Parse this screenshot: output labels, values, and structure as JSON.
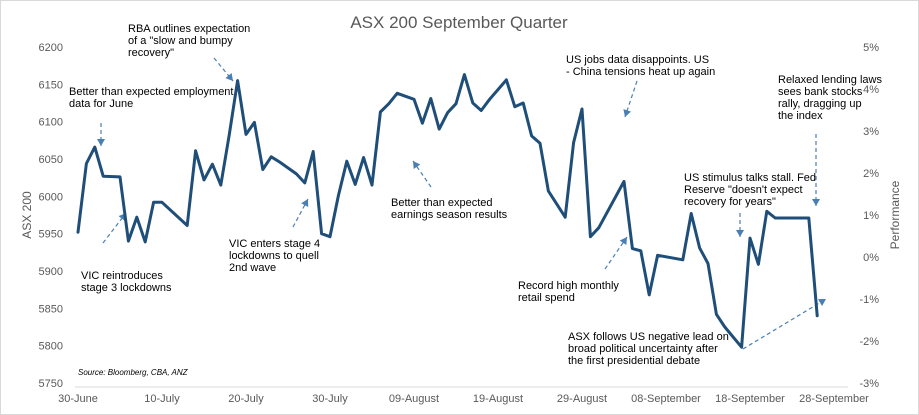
{
  "chart_data": {
    "type": "line",
    "title": "ASX 200 September Quarter",
    "ylabel": "ASX 200",
    "y2label": "Performance",
    "ylim": [
      5750,
      6200
    ],
    "yticks": [
      "5750",
      "5800",
      "5850",
      "5900",
      "5950",
      "6000",
      "6050",
      "6100",
      "6150",
      "6200"
    ],
    "y2ticks": [
      "5%",
      "4%",
      "3%",
      "2%",
      "1%",
      "0%",
      "-1%",
      "-2%",
      "-3%"
    ],
    "xticks": [
      "30-June",
      "10-July",
      "20-July",
      "30-July",
      "09-August",
      "19-August",
      "29-August",
      "08-September",
      "18-September",
      "28-September"
    ],
    "grid": false,
    "series": [
      {
        "x": [
          0,
          1,
          2,
          3,
          5,
          6,
          7,
          8,
          9,
          10,
          13,
          14,
          15,
          16,
          17,
          18,
          19,
          20,
          21,
          22,
          23,
          24,
          26,
          27,
          28,
          29,
          30,
          31,
          32,
          33,
          34,
          35,
          36,
          37,
          38,
          40,
          41,
          42,
          43,
          44,
          45,
          46,
          47,
          48,
          49,
          51,
          52,
          53,
          54,
          55,
          56,
          58,
          59,
          60,
          61,
          62,
          65,
          66,
          67,
          68,
          69,
          72,
          73,
          74,
          75,
          76,
          77,
          79,
          80,
          81,
          82,
          83,
          84,
          85,
          86,
          87,
          88
        ],
        "values": [
          5952,
          6044,
          6066,
          6027,
          6026,
          5940,
          5972,
          5939,
          5992,
          5992,
          5961,
          6061,
          6022,
          6043,
          6015,
          6082,
          6155,
          6083,
          6099,
          6036,
          6053,
          6046,
          6030,
          6018,
          6060,
          5950,
          5946,
          6001,
          6047,
          6016,
          6052,
          6015,
          6113,
          6124,
          6138,
          6130,
          6098,
          6131,
          6090,
          6112,
          6124,
          6163,
          6125,
          6115,
          6130,
          6156,
          6120,
          6125,
          6081,
          6071,
          6007,
          5972,
          6072,
          6117,
          5946,
          5958,
          6020,
          5930,
          5927,
          5868,
          5921,
          5915,
          5977,
          5931,
          5910,
          5842,
          5825,
          5798,
          5944,
          5909,
          5980,
          5971,
          5971,
          5971,
          5971,
          5971,
          5840
        ]
      }
    ],
    "annotations": [
      {
        "text": "Better than expected employment data for June"
      },
      {
        "text": "RBA outlines expectation of a \"slow and bumpy recovery\""
      },
      {
        "text": "VIC reintroduces stage 3 lockdowns"
      },
      {
        "text": "VIC enters stage 4 lockdowns to quell 2nd wave"
      },
      {
        "text": "Better than expected earnings season results"
      },
      {
        "text": "US jobs data disappoints. US - China tensions heat up again"
      },
      {
        "text": "Record high monthly retail spend"
      },
      {
        "text": "Relaxed lending laws sees bank stocks rally, dragging up the index"
      },
      {
        "text": "US stimulus talks stall. Fed Reserve \"doesn't expect recovery for years\""
      },
      {
        "text": "ASX follows US negative lead on broad political uncertainty after the first presidential debate"
      }
    ],
    "source": "Source:  Bloomberg,   CBA, ANZ",
    "line_color": "#1f4e79",
    "arrow_color": "#4a7fb5"
  }
}
